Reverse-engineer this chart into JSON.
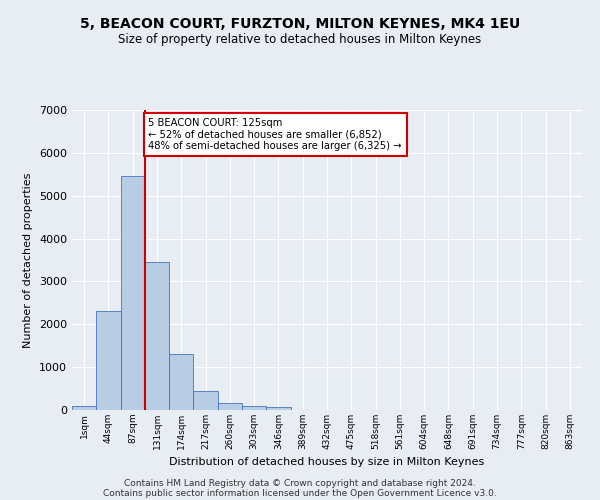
{
  "title": "5, BEACON COURT, FURZTON, MILTON KEYNES, MK4 1EU",
  "subtitle": "Size of property relative to detached houses in Milton Keynes",
  "xlabel": "Distribution of detached houses by size in Milton Keynes",
  "ylabel": "Number of detached properties",
  "footer_line1": "Contains HM Land Registry data © Crown copyright and database right 2024.",
  "footer_line2": "Contains public sector information licensed under the Open Government Licence v3.0.",
  "bar_labels": [
    "1sqm",
    "44sqm",
    "87sqm",
    "131sqm",
    "174sqm",
    "217sqm",
    "260sqm",
    "303sqm",
    "346sqm",
    "389sqm",
    "432sqm",
    "475sqm",
    "518sqm",
    "561sqm",
    "604sqm",
    "648sqm",
    "691sqm",
    "734sqm",
    "777sqm",
    "820sqm",
    "863sqm"
  ],
  "bar_values": [
    100,
    2300,
    5450,
    3450,
    1300,
    450,
    170,
    100,
    80,
    0,
    0,
    0,
    0,
    0,
    0,
    0,
    0,
    0,
    0,
    0,
    0
  ],
  "bar_color": "#b8cce4",
  "bar_edge_color": "#4472c4",
  "background_color": "#e8edf4",
  "grid_color": "#ffffff",
  "vline_color": "#cc0000",
  "annotation_text": "5 BEACON COURT: 125sqm\n← 52% of detached houses are smaller (6,852)\n48% of semi-detached houses are larger (6,325) →",
  "annotation_box_color": "#ffffff",
  "annotation_box_edge": "#cc0000",
  "ylim": [
    0,
    7000
  ],
  "yticks": [
    0,
    1000,
    2000,
    3000,
    4000,
    5000,
    6000,
    7000
  ]
}
